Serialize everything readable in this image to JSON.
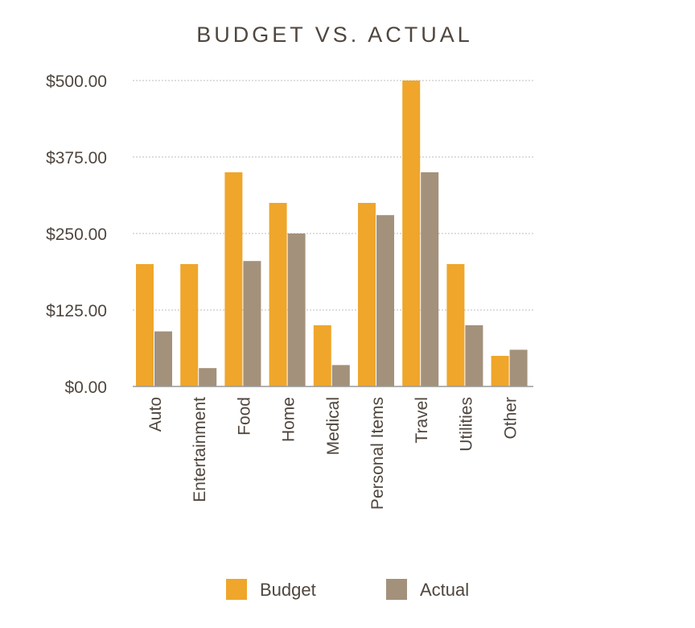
{
  "chart_data": {
    "type": "bar",
    "title": "BUDGET VS. ACTUAL",
    "xlabel": "",
    "ylabel": "",
    "categories": [
      "Auto",
      "Entertainment",
      "Food",
      "Home",
      "Medical",
      "Personal Items",
      "Travel",
      "Utilities",
      "Other"
    ],
    "series": [
      {
        "name": "Budget",
        "color": "#EFA62B",
        "values": [
          200,
          200,
          350,
          300,
          100,
          300,
          500,
          200,
          50
        ]
      },
      {
        "name": "Actual",
        "color": "#A3917B",
        "values": [
          90,
          30,
          205,
          250,
          35,
          280,
          350,
          100,
          60
        ]
      }
    ],
    "ylim": [
      0,
      500
    ],
    "yticks": [
      0,
      125,
      250,
      375,
      500
    ],
    "ytick_labels": [
      "$0.00",
      "$125.00",
      "$250.00",
      "$375.00",
      "$500.00"
    ],
    "grid": true,
    "legend_position": "bottom"
  }
}
